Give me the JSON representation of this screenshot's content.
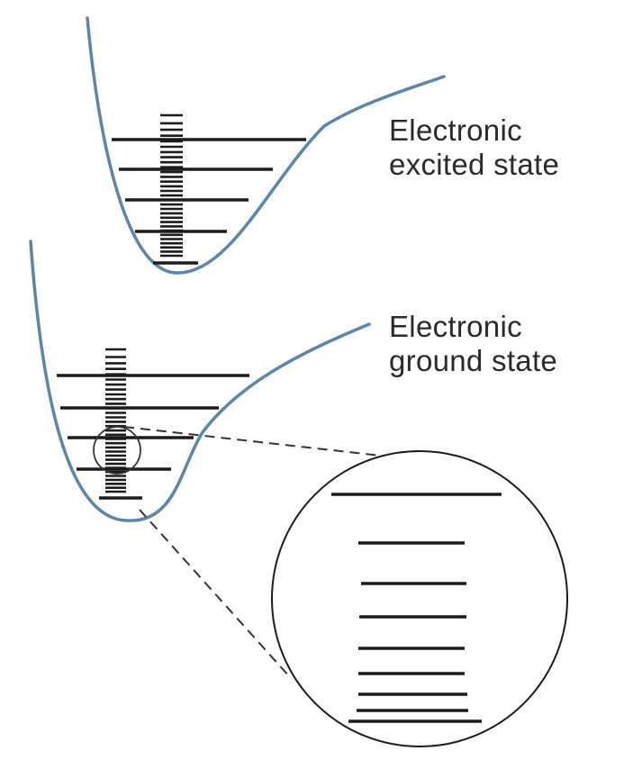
{
  "labels": {
    "excited": [
      "Electronic",
      "excited state"
    ],
    "ground": [
      "Electronic",
      "ground state"
    ]
  },
  "colors": {
    "curve": "#5b86a8",
    "levels": "#1c1c1c",
    "text": "#2a2a2a"
  }
}
